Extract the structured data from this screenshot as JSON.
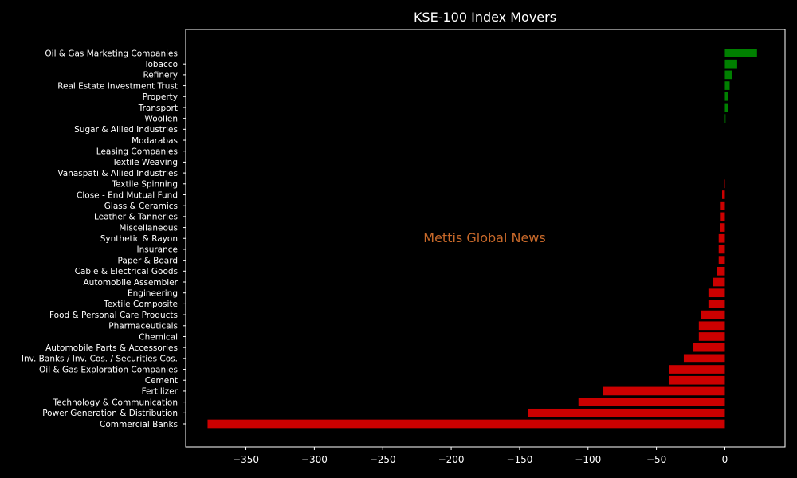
{
  "chart_data": {
    "type": "bar",
    "orientation": "horizontal",
    "title": "KSE-100 Index Movers",
    "watermark": "Mettis Global News",
    "xlabel": "",
    "ylabel": "",
    "xlim": [
      -394,
      44
    ],
    "xticks": [
      -350,
      -300,
      -250,
      -200,
      -150,
      -100,
      -50,
      0
    ],
    "xtick_labels": [
      "−350",
      "−300",
      "−250",
      "−200",
      "−150",
      "−100",
      "−50",
      "0"
    ],
    "grid": false,
    "colors": {
      "positive": "#008000",
      "negative": "#cc0000",
      "background": "#000000",
      "text": "#ffffff",
      "watermark": "#c8692a"
    },
    "categories": [
      "Oil & Gas Marketing Companies",
      "Tobacco",
      "Refinery",
      "Real Estate Investment Trust",
      "Property",
      "Transport",
      "Woollen",
      "Sugar & Allied Industries",
      "Modarabas",
      "Leasing Companies",
      "Textile Weaving",
      "Vanaspati & Allied Industries",
      "Textile Spinning",
      "Close - End Mutual Fund",
      "Glass & Ceramics",
      "Leather & Tanneries",
      "Miscellaneous",
      "Synthetic & Rayon",
      "Insurance",
      "Paper & Board",
      "Cable & Electrical Goods",
      "Automobile Assembler",
      "Engineering",
      "Textile Composite",
      "Food & Personal Care Products",
      "Pharmaceuticals",
      "Chemical",
      "Automobile Parts & Accessories",
      "Inv. Banks / Inv. Cos. / Securities Cos.",
      "Oil & Gas Exploration Companies",
      "Cement",
      "Fertilizer",
      "Technology & Communication",
      "Power Generation & Distribution",
      "Commercial Banks"
    ],
    "values": [
      23.5,
      9,
      5,
      3.5,
      2.5,
      2.2,
      0.5,
      0,
      0,
      0,
      0,
      0,
      -0.8,
      -2,
      -3,
      -3,
      -3.5,
      -4.5,
      -4.5,
      -4.5,
      -6,
      -8.5,
      -12,
      -12,
      -17.5,
      -19,
      -19,
      -23,
      -30,
      -40.5,
      -40.5,
      -89,
      -107,
      -144,
      -378
    ]
  }
}
